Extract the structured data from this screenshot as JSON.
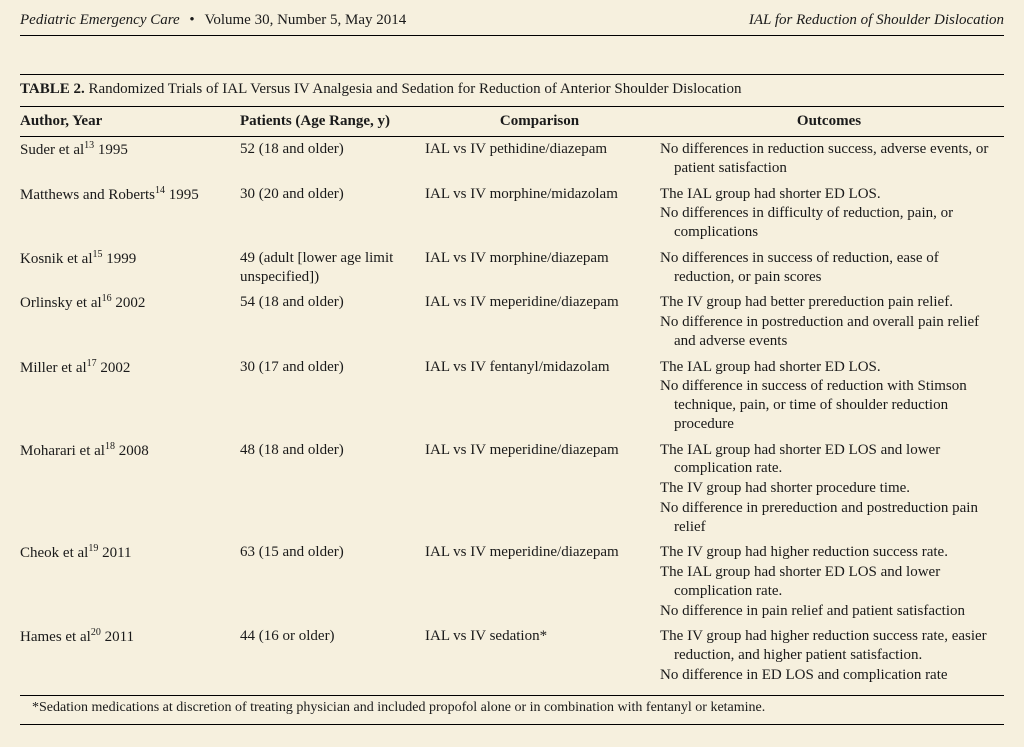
{
  "header": {
    "journal": "Pediatric Emergency Care",
    "bullet": "•",
    "issue": "Volume 30, Number 5, May 2014",
    "running_title": "IAL for Reduction of Shoulder Dislocation"
  },
  "table": {
    "label": "TABLE 2.",
    "caption": "Randomized Trials of IAL Versus IV Analgesia and Sedation for Reduction of Anterior Shoulder Dislocation",
    "columns": {
      "author": "Author, Year",
      "patients": "Patients (Age Range, y)",
      "comparison": "Comparison",
      "outcomes": "Outcomes"
    },
    "rows": [
      {
        "author_pre": "Suder et al",
        "author_sup": "13",
        "author_post": " 1995",
        "patients": "52 (18 and older)",
        "comparison": "IAL vs IV pethidine/diazepam",
        "outcomes": [
          "No differences in reduction success, adverse events, or patient satisfaction"
        ]
      },
      {
        "author_pre": "Matthews and Roberts",
        "author_sup": "14",
        "author_post": " 1995",
        "patients": "30 (20 and older)",
        "comparison": "IAL vs IV morphine/midazolam",
        "outcomes": [
          "The IAL group had shorter ED LOS.",
          "No differences in difficulty of reduction, pain, or complications"
        ]
      },
      {
        "author_pre": "Kosnik et al",
        "author_sup": "15",
        "author_post": " 1999",
        "patients": "49 (adult [lower age limit unspecified])",
        "comparison": "IAL vs IV morphine/diazepam",
        "outcomes": [
          "No differences in success of reduction, ease of reduction, or pain scores"
        ]
      },
      {
        "author_pre": "Orlinsky et al",
        "author_sup": "16",
        "author_post": " 2002",
        "patients": "54 (18 and older)",
        "comparison": "IAL vs IV meperidine/diazepam",
        "outcomes": [
          "The IV group had better prereduction pain relief.",
          "No difference in postreduction and overall pain relief and adverse events"
        ]
      },
      {
        "author_pre": "Miller et al",
        "author_sup": "17",
        "author_post": " 2002",
        "patients": "30 (17 and older)",
        "comparison": "IAL vs IV fentanyl/midazolam",
        "outcomes": [
          "The IAL group had shorter ED LOS.",
          "No difference in success of reduction with Stimson technique, pain, or time of shoulder reduction procedure"
        ]
      },
      {
        "author_pre": "Moharari et al",
        "author_sup": "18",
        "author_post": " 2008",
        "patients": "48 (18 and older)",
        "comparison": "IAL vs IV meperidine/diazepam",
        "outcomes": [
          "The IAL group had shorter ED LOS and lower complication rate.",
          "The IV group had shorter procedure time.",
          "No difference in prereduction and postreduction pain relief"
        ]
      },
      {
        "author_pre": "Cheok et al",
        "author_sup": "19",
        "author_post": " 2011",
        "patients": "63 (15 and older)",
        "comparison": "IAL vs IV meperidine/diazepam",
        "outcomes": [
          "The IV group had higher reduction success rate.",
          "The IAL group had shorter ED LOS and lower complication rate.",
          "No difference in pain relief and patient satisfaction"
        ]
      },
      {
        "author_pre": "Hames et al",
        "author_sup": "20",
        "author_post": " 2011",
        "patients": "44 (16 or older)",
        "comparison": "IAL vs IV sedation*",
        "outcomes": [
          "The IV group had higher reduction success rate, easier reduction, and higher patient satisfaction.",
          "No difference in ED LOS and complication rate"
        ]
      }
    ],
    "footnote": "*Sedation medications at discretion of treating physician and included propofol alone or in combination with fentanyl or ketamine."
  }
}
